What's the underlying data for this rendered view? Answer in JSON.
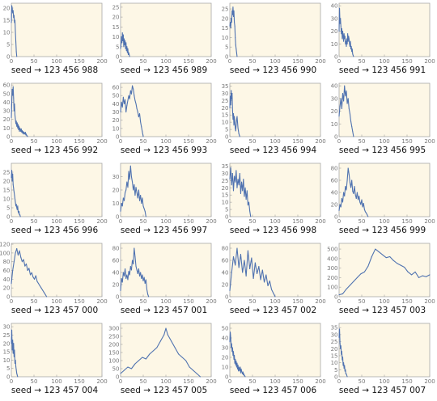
{
  "chart_data": [
    {
      "type": "line",
      "caption": "seed → 123 456 988",
      "ylim": [
        0,
        22
      ],
      "xlim": [
        0,
        200
      ],
      "yticks": [
        0,
        5,
        10,
        15,
        20
      ],
      "xticks": [
        0,
        50,
        100,
        150,
        200
      ],
      "x": [
        0,
        1,
        2,
        3,
        4,
        5,
        6,
        7,
        8,
        9,
        10,
        11,
        12
      ],
      "values": [
        14,
        21,
        20,
        18,
        19,
        16,
        17,
        14,
        15,
        10,
        6,
        2,
        0
      ]
    },
    {
      "type": "line",
      "caption": "seed → 123 456 989",
      "ylim": [
        0,
        27
      ],
      "xlim": [
        0,
        200
      ],
      "yticks": [
        0,
        5,
        10,
        15,
        20,
        25
      ],
      "xticks": [
        0,
        50,
        100,
        150,
        200
      ],
      "x": [
        0,
        1,
        2,
        3,
        4,
        5,
        6,
        7,
        8,
        9,
        10,
        11,
        12,
        13,
        14,
        15,
        16,
        17,
        18,
        19,
        20
      ],
      "values": [
        4,
        6,
        10,
        7,
        12,
        8,
        11,
        5,
        9,
        6,
        8,
        4,
        7,
        3,
        5,
        2,
        4,
        1,
        2,
        1,
        0
      ]
    },
    {
      "type": "line",
      "caption": "seed → 123 456 990",
      "ylim": [
        0,
        28
      ],
      "xlim": [
        0,
        200
      ],
      "yticks": [
        0,
        5,
        10,
        15,
        20,
        25
      ],
      "xticks": [
        0,
        50,
        100,
        150,
        200
      ],
      "x": [
        0,
        1,
        2,
        3,
        4,
        5,
        6,
        7,
        8,
        9,
        10,
        11,
        12,
        13,
        14,
        15,
        16
      ],
      "values": [
        16,
        18,
        15,
        20,
        18,
        24,
        22,
        26,
        21,
        24,
        18,
        16,
        10,
        6,
        4,
        2,
        0
      ]
    },
    {
      "type": "line",
      "caption": "seed → 123 456 991",
      "ylim": [
        0,
        42
      ],
      "xlim": [
        0,
        200
      ],
      "yticks": [
        0,
        10,
        20,
        30,
        40
      ],
      "xticks": [
        0,
        50,
        100,
        150,
        200
      ],
      "x": [
        0,
        1,
        2,
        3,
        4,
        5,
        6,
        7,
        8,
        9,
        10,
        11,
        12,
        13,
        14,
        15,
        16,
        17,
        18,
        19,
        20,
        21,
        22,
        23,
        24,
        25,
        26,
        27,
        28,
        29,
        30,
        31,
        32
      ],
      "values": [
        20,
        38,
        26,
        30,
        24,
        18,
        22,
        14,
        20,
        16,
        12,
        18,
        14,
        16,
        10,
        12,
        8,
        14,
        10,
        18,
        12,
        16,
        14,
        10,
        8,
        12,
        6,
        8,
        4,
        6,
        2,
        1,
        0
      ]
    },
    {
      "type": "line",
      "caption": "seed → 123 456 992",
      "ylim": [
        0,
        62
      ],
      "xlim": [
        0,
        200
      ],
      "yticks": [
        0,
        10,
        20,
        30,
        40,
        50,
        60
      ],
      "xticks": [
        0,
        50,
        100,
        150,
        200
      ],
      "x": [
        0,
        1,
        2,
        3,
        4,
        5,
        6,
        7,
        8,
        9,
        10,
        11,
        12,
        13,
        14,
        15,
        16,
        17,
        18,
        19,
        20,
        21,
        22,
        23,
        24,
        25,
        26,
        27,
        28,
        29,
        30,
        31,
        32,
        33,
        34,
        35,
        36
      ],
      "values": [
        22,
        40,
        55,
        48,
        58,
        45,
        30,
        38,
        25,
        20,
        15,
        18,
        12,
        16,
        10,
        14,
        8,
        12,
        6,
        10,
        8,
        6,
        9,
        5,
        7,
        4,
        6,
        3,
        5,
        4,
        3,
        5,
        2,
        3,
        1,
        1,
        0
      ]
    },
    {
      "type": "line",
      "caption": "seed → 123 456 993",
      "ylim": [
        0,
        65
      ],
      "xlim": [
        0,
        200
      ],
      "yticks": [
        0,
        10,
        20,
        30,
        40,
        50,
        60
      ],
      "xticks": [
        0,
        50,
        100,
        150,
        200
      ],
      "x": [
        0,
        2,
        4,
        6,
        8,
        10,
        12,
        14,
        16,
        18,
        20,
        22,
        24,
        26,
        28,
        30,
        32,
        34,
        36,
        38,
        40,
        42,
        44,
        46,
        48,
        50
      ],
      "values": [
        30,
        42,
        36,
        48,
        40,
        45,
        30,
        38,
        44,
        50,
        46,
        56,
        52,
        62,
        58,
        50,
        44,
        40,
        34,
        30,
        24,
        28,
        18,
        12,
        6,
        0
      ]
    },
    {
      "type": "line",
      "caption": "seed → 123 456 994",
      "ylim": [
        0,
        37
      ],
      "xlim": [
        0,
        200
      ],
      "yticks": [
        0,
        5,
        10,
        15,
        20,
        25,
        30,
        35
      ],
      "xticks": [
        0,
        50,
        100,
        150,
        200
      ],
      "x": [
        0,
        1,
        2,
        3,
        4,
        5,
        6,
        7,
        8,
        9,
        10,
        11,
        12,
        13,
        14,
        15,
        16,
        17,
        18,
        19,
        20,
        21,
        22
      ],
      "values": [
        20,
        28,
        22,
        32,
        26,
        30,
        18,
        12,
        16,
        8,
        14,
        10,
        6,
        4,
        8,
        12,
        14,
        10,
        6,
        4,
        2,
        1,
        0
      ]
    },
    {
      "type": "line",
      "caption": "seed → 123 456 995",
      "ylim": [
        0,
        42
      ],
      "xlim": [
        0,
        200
      ],
      "yticks": [
        0,
        10,
        20,
        30,
        40
      ],
      "xticks": [
        0,
        50,
        100,
        150,
        200
      ],
      "x": [
        0,
        2,
        4,
        6,
        8,
        10,
        12,
        14,
        16,
        18,
        20,
        22,
        24,
        26,
        28,
        30,
        32
      ],
      "values": [
        16,
        24,
        30,
        22,
        34,
        28,
        40,
        32,
        36,
        26,
        30,
        22,
        18,
        12,
        8,
        4,
        0
      ]
    },
    {
      "type": "line",
      "caption": "seed → 123 456 996",
      "ylim": [
        0,
        30
      ],
      "xlim": [
        0,
        200
      ],
      "yticks": [
        0,
        5,
        10,
        15,
        20,
        25
      ],
      "xticks": [
        0,
        50,
        100,
        150,
        200
      ],
      "x": [
        0,
        1,
        2,
        3,
        4,
        5,
        6,
        7,
        8,
        9,
        10,
        11,
        12,
        13,
        14,
        15,
        16,
        17,
        18,
        19,
        20
      ],
      "values": [
        22,
        26,
        20,
        24,
        18,
        16,
        14,
        12,
        10,
        8,
        6,
        7,
        5,
        4,
        6,
        3,
        2,
        3,
        1,
        1,
        0
      ]
    },
    {
      "type": "line",
      "caption": "seed → 123 456 997",
      "ylim": [
        0,
        40
      ],
      "xlim": [
        0,
        200
      ],
      "yticks": [
        0,
        10,
        20,
        30
      ],
      "xticks": [
        0,
        50,
        100,
        150,
        200
      ],
      "x": [
        0,
        2,
        4,
        6,
        8,
        10,
        12,
        14,
        16,
        18,
        20,
        22,
        24,
        26,
        28,
        30,
        32,
        34,
        36,
        38,
        40,
        42,
        44,
        46,
        48,
        50,
        52,
        54,
        56
      ],
      "values": [
        4,
        10,
        8,
        14,
        12,
        18,
        20,
        26,
        22,
        34,
        28,
        38,
        30,
        26,
        20,
        24,
        16,
        22,
        18,
        14,
        20,
        12,
        16,
        10,
        14,
        8,
        6,
        4,
        0
      ]
    },
    {
      "type": "line",
      "caption": "seed → 123 456 998",
      "ylim": [
        0,
        37
      ],
      "xlim": [
        0,
        200
      ],
      "yticks": [
        0,
        5,
        10,
        15,
        20,
        25,
        30,
        35
      ],
      "xticks": [
        0,
        50,
        100,
        150,
        200
      ],
      "x": [
        0,
        2,
        4,
        6,
        8,
        10,
        12,
        14,
        16,
        18,
        20,
        22,
        24,
        26,
        28,
        30,
        32,
        34,
        36,
        38,
        40,
        42,
        44,
        46
      ],
      "values": [
        26,
        34,
        22,
        30,
        18,
        28,
        24,
        32,
        20,
        26,
        22,
        30,
        16,
        24,
        18,
        26,
        14,
        20,
        12,
        18,
        8,
        10,
        4,
        0
      ]
    },
    {
      "type": "line",
      "caption": "seed → 123 456 999",
      "ylim": [
        0,
        88
      ],
      "xlim": [
        0,
        200
      ],
      "yticks": [
        0,
        20,
        40,
        60,
        80
      ],
      "xticks": [
        0,
        50,
        100,
        150,
        200
      ],
      "x": [
        0,
        2,
        4,
        6,
        8,
        10,
        12,
        14,
        16,
        18,
        20,
        22,
        24,
        26,
        28,
        30,
        32,
        34,
        36,
        38,
        40,
        42,
        44,
        46,
        48,
        50,
        52,
        54,
        56,
        58,
        60,
        62,
        64
      ],
      "values": [
        10,
        20,
        16,
        30,
        24,
        40,
        34,
        50,
        44,
        60,
        80,
        70,
        56,
        48,
        60,
        42,
        38,
        50,
        36,
        30,
        40,
        28,
        34,
        24,
        20,
        28,
        16,
        22,
        12,
        8,
        6,
        3,
        0
      ]
    },
    {
      "type": "line",
      "caption": "seed → 123 457 000",
      "ylim": [
        0,
        122
      ],
      "xlim": [
        0,
        200
      ],
      "yticks": [
        0,
        20,
        40,
        60,
        80,
        100,
        120
      ],
      "xticks": [
        0,
        50,
        100,
        150,
        200
      ],
      "x": [
        0,
        3,
        6,
        9,
        12,
        15,
        18,
        21,
        24,
        27,
        30,
        33,
        36,
        39,
        42,
        45,
        48,
        51,
        54,
        57,
        60,
        63,
        66,
        69,
        72,
        75,
        78
      ],
      "values": [
        30,
        60,
        80,
        100,
        110,
        95,
        105,
        90,
        80,
        85,
        70,
        75,
        60,
        65,
        50,
        55,
        45,
        40,
        48,
        35,
        30,
        25,
        20,
        15,
        10,
        5,
        0
      ]
    },
    {
      "type": "line",
      "caption": "seed → 123 457 001",
      "ylim": [
        0,
        88
      ],
      "xlim": [
        0,
        200
      ],
      "yticks": [
        0,
        20,
        40,
        60,
        80
      ],
      "xticks": [
        0,
        50,
        100,
        150,
        200
      ],
      "x": [
        0,
        2,
        4,
        6,
        8,
        10,
        12,
        14,
        16,
        18,
        20,
        22,
        24,
        26,
        28,
        30,
        32,
        34,
        36,
        38,
        40,
        42,
        44,
        46,
        48,
        50,
        52,
        54,
        56,
        58,
        60,
        62
      ],
      "values": [
        10,
        30,
        24,
        40,
        34,
        46,
        30,
        36,
        28,
        42,
        36,
        50,
        44,
        60,
        54,
        80,
        66,
        50,
        44,
        38,
        46,
        34,
        40,
        30,
        36,
        26,
        32,
        22,
        28,
        12,
        4,
        0
      ]
    },
    {
      "type": "line",
      "caption": "seed → 123 457 002",
      "ylim": [
        0,
        88
      ],
      "xlim": [
        0,
        200
      ],
      "yticks": [
        0,
        20,
        40,
        60,
        80
      ],
      "xticks": [
        0,
        50,
        100,
        150,
        200
      ],
      "x": [
        0,
        4,
        8,
        12,
        16,
        20,
        24,
        28,
        32,
        36,
        40,
        44,
        48,
        52,
        56,
        60,
        64,
        68,
        72,
        76,
        80,
        84,
        88,
        92,
        96,
        100
      ],
      "values": [
        10,
        40,
        66,
        52,
        80,
        48,
        70,
        40,
        60,
        34,
        76,
        46,
        64,
        30,
        56,
        38,
        50,
        28,
        44,
        24,
        36,
        18,
        26,
        12,
        6,
        0
      ]
    },
    {
      "type": "line",
      "caption": "seed → 123 457 003",
      "ylim": [
        0,
        560
      ],
      "xlim": [
        0,
        200
      ],
      "yticks": [
        0,
        100,
        200,
        300,
        400,
        500
      ],
      "xticks": [
        0,
        50,
        100,
        150,
        200
      ],
      "x": [
        0,
        8,
        16,
        24,
        32,
        40,
        48,
        56,
        64,
        72,
        80,
        88,
        96,
        104,
        112,
        120,
        128,
        136,
        144,
        152,
        160,
        168,
        176,
        184,
        192,
        200
      ],
      "values": [
        20,
        30,
        80,
        120,
        160,
        200,
        240,
        260,
        320,
        420,
        500,
        470,
        440,
        410,
        420,
        380,
        350,
        330,
        310,
        260,
        230,
        260,
        200,
        220,
        210,
        230
      ]
    },
    {
      "type": "line",
      "caption": "seed → 123 457 004",
      "ylim": [
        0,
        32
      ],
      "xlim": [
        0,
        200
      ],
      "yticks": [
        0,
        5,
        10,
        15,
        20,
        25,
        30
      ],
      "xticks": [
        0,
        50,
        100,
        150,
        200
      ],
      "x": [
        0,
        1,
        2,
        3,
        4,
        5,
        6,
        7,
        8,
        9,
        10,
        11,
        12,
        13,
        14
      ],
      "values": [
        20,
        28,
        16,
        22,
        14,
        20,
        12,
        16,
        8,
        10,
        6,
        4,
        2,
        1,
        0
      ]
    },
    {
      "type": "line",
      "caption": "seed → 123 457 005",
      "ylim": [
        0,
        330
      ],
      "xlim": [
        0,
        200
      ],
      "yticks": [
        0,
        50,
        100,
        150,
        200,
        250,
        300
      ],
      "xticks": [
        0,
        50,
        100,
        150,
        200
      ],
      "x": [
        0,
        8,
        16,
        24,
        32,
        40,
        48,
        56,
        64,
        72,
        80,
        88,
        96,
        100,
        104,
        112,
        120,
        128,
        136,
        144,
        152,
        160,
        168,
        176
      ],
      "values": [
        20,
        40,
        60,
        50,
        80,
        100,
        120,
        110,
        140,
        160,
        180,
        220,
        260,
        300,
        260,
        220,
        180,
        140,
        120,
        100,
        60,
        40,
        20,
        0
      ]
    },
    {
      "type": "line",
      "caption": "seed → 123 457 006",
      "ylim": [
        0,
        55
      ],
      "xlim": [
        0,
        200
      ],
      "yticks": [
        0,
        10,
        20,
        30,
        40,
        50
      ],
      "xticks": [
        0,
        50,
        100,
        150,
        200
      ],
      "x": [
        0,
        1,
        2,
        3,
        4,
        5,
        6,
        7,
        8,
        9,
        10,
        11,
        12,
        13,
        14,
        15,
        16,
        17,
        18,
        19,
        20,
        21,
        22,
        23,
        24,
        25,
        26,
        27,
        28,
        29,
        30,
        31,
        32,
        33,
        34
      ],
      "values": [
        36,
        46,
        40,
        30,
        34,
        26,
        30,
        22,
        26,
        18,
        22,
        14,
        18,
        12,
        16,
        10,
        14,
        8,
        12,
        6,
        10,
        8,
        6,
        10,
        4,
        8,
        6,
        4,
        3,
        5,
        2,
        3,
        1,
        1,
        0
      ]
    },
    {
      "type": "line",
      "caption": "seed → 123 457 007",
      "ylim": [
        0,
        38
      ],
      "xlim": [
        0,
        200
      ],
      "yticks": [
        0,
        5,
        10,
        15,
        20,
        25,
        30,
        35
      ],
      "xticks": [
        0,
        50,
        100,
        150,
        200
      ],
      "x": [
        0,
        1,
        2,
        3,
        4,
        5,
        6,
        7,
        8,
        9,
        10,
        11,
        12,
        13,
        14,
        15,
        16,
        17,
        18
      ],
      "values": [
        28,
        34,
        24,
        20,
        22,
        16,
        18,
        12,
        14,
        8,
        10,
        6,
        8,
        4,
        5,
        2,
        2,
        1,
        0
      ]
    }
  ],
  "colors": {
    "plot_bg": "#fdf7e6",
    "frame": "#a8a8a8",
    "line": "#4f72b0",
    "tick_text": "#777777",
    "caption": "#111111"
  }
}
